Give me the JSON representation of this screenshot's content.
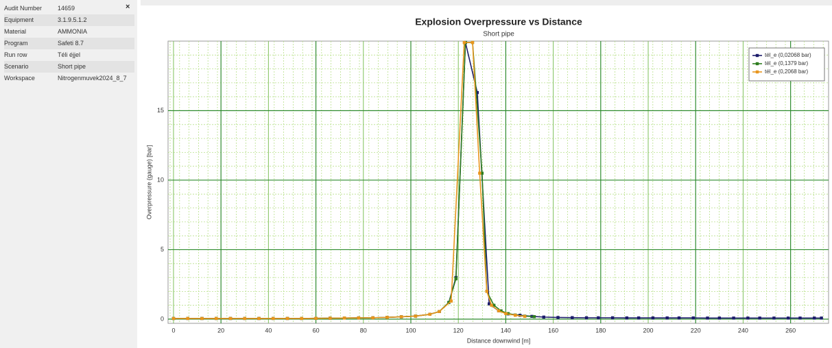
{
  "panel": {
    "close": "×",
    "rows": [
      [
        "Audit Number",
        "14659"
      ],
      [
        "Equipment",
        "3.1.9.5.1.2"
      ],
      [
        "Material",
        "AMMONIA"
      ],
      [
        "Program",
        "Safeti 8.7"
      ],
      [
        "Run row",
        "Téli éjjel"
      ],
      [
        "Scenario",
        "Short pipe"
      ],
      [
        "Workspace",
        "Nitrogenmuvek2024_8_7"
      ]
    ]
  },
  "chart_data": {
    "type": "line",
    "title": "Explosion Overpressure vs Distance",
    "subtitle": "Short pipe",
    "x_label": "Distance downwind [m]",
    "y_label": "Overpressure (gauge) [bar]",
    "xlim": [
      -2.3,
      276
    ],
    "xticks": [
      0,
      20,
      40,
      60,
      80,
      100,
      120,
      140,
      160,
      180,
      200,
      220,
      240,
      260
    ],
    "ylim": [
      -0.3,
      20
    ],
    "yticks": [
      0,
      5,
      10,
      15
    ],
    "grid": true,
    "legend": "top-right",
    "series": [
      {
        "name": "tél_e (0,02068 bar)",
        "color": "#1c1c6b",
        "x": [
          0,
          6,
          12,
          18,
          24,
          30,
          36,
          42,
          48,
          54,
          60,
          66,
          72,
          78,
          84,
          90,
          96,
          102,
          108,
          112,
          116,
          119,
          123,
          128,
          133,
          137,
          141,
          146,
          151,
          156,
          162,
          168,
          174,
          179,
          185,
          191,
          196,
          202,
          208,
          213,
          219,
          225,
          230,
          236,
          242,
          247,
          253,
          259,
          264,
          270,
          273
        ],
        "values": [
          0.05,
          0.05,
          0.05,
          0.05,
          0.05,
          0.05,
          0.05,
          0.05,
          0.05,
          0.05,
          0.06,
          0.07,
          0.08,
          0.09,
          0.1,
          0.13,
          0.17,
          0.22,
          0.35,
          0.55,
          1.2,
          3.0,
          19.9,
          16.3,
          1.1,
          0.6,
          0.38,
          0.28,
          0.2,
          0.15,
          0.12,
          0.11,
          0.1,
          0.1,
          0.1,
          0.09,
          0.09,
          0.09,
          0.09,
          0.09,
          0.09,
          0.08,
          0.08,
          0.08,
          0.08,
          0.08,
          0.08,
          0.08,
          0.08,
          0.08,
          0.08
        ]
      },
      {
        "name": "tél_e (0,1379 bar)",
        "color": "#2e7d1f",
        "x": [
          0,
          6,
          12,
          18,
          24,
          30,
          36,
          42,
          48,
          54,
          60,
          66,
          72,
          78,
          84,
          90,
          96,
          102,
          108,
          112,
          116,
          119,
          123,
          126,
          130,
          132,
          135,
          138,
          141,
          144,
          148,
          152
        ],
        "values": [
          0.05,
          0.05,
          0.05,
          0.05,
          0.05,
          0.05,
          0.05,
          0.05,
          0.05,
          0.05,
          0.06,
          0.07,
          0.08,
          0.09,
          0.1,
          0.13,
          0.17,
          0.22,
          0.35,
          0.55,
          1.2,
          2.9,
          19.9,
          19.9,
          10.5,
          2.0,
          1.0,
          0.6,
          0.4,
          0.3,
          0.22,
          0.18
        ]
      },
      {
        "name": "tél_e (0,2068 bar)",
        "color": "#e8961e",
        "x": [
          0,
          6,
          12,
          18,
          24,
          30,
          36,
          42,
          48,
          54,
          60,
          66,
          72,
          78,
          84,
          90,
          96,
          102,
          108,
          112,
          117,
          122.5,
          126,
          129,
          132,
          134,
          137,
          140,
          144,
          148
        ],
        "values": [
          0.05,
          0.05,
          0.05,
          0.05,
          0.05,
          0.05,
          0.05,
          0.05,
          0.05,
          0.05,
          0.06,
          0.07,
          0.08,
          0.09,
          0.1,
          0.13,
          0.17,
          0.22,
          0.35,
          0.55,
          1.3,
          19.9,
          19.9,
          10.5,
          2.0,
          1.0,
          0.6,
          0.4,
          0.28,
          0.2
        ]
      }
    ]
  }
}
